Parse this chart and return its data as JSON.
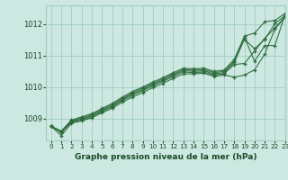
{
  "bg_color": "#cce8e0",
  "grid_color": "#9ecec4",
  "line_color": "#2d6b3c",
  "xlabel": "Graphe pression niveau de la mer (hPa)",
  "xlabel_color": "#1a4a28",
  "xlim": [
    -0.5,
    23
  ],
  "ylim": [
    1008.3,
    1012.6
  ],
  "yticks": [
    1009,
    1010,
    1011,
    1012
  ],
  "xticks": [
    0,
    1,
    2,
    3,
    4,
    5,
    6,
    7,
    8,
    9,
    10,
    11,
    12,
    13,
    14,
    15,
    16,
    17,
    18,
    19,
    20,
    21,
    22,
    23
  ],
  "series": [
    [
      1008.75,
      1008.45,
      1008.85,
      1008.92,
      1009.02,
      1009.18,
      1009.32,
      1009.52,
      1009.68,
      1009.82,
      1009.98,
      1010.12,
      1010.28,
      1010.42,
      1010.42,
      1010.44,
      1010.34,
      1010.38,
      1010.32,
      1010.38,
      1010.55,
      1011.05,
      1011.85,
      1012.22
    ],
    [
      1008.75,
      1008.55,
      1008.88,
      1008.95,
      1009.06,
      1009.22,
      1009.37,
      1009.57,
      1009.74,
      1009.88,
      1010.04,
      1010.18,
      1010.34,
      1010.48,
      1010.46,
      1010.48,
      1010.38,
      1010.42,
      1010.72,
      1010.75,
      1011.15,
      1011.55,
      1011.88,
      1012.25
    ],
    [
      1008.75,
      1008.57,
      1008.9,
      1008.98,
      1009.08,
      1009.24,
      1009.4,
      1009.6,
      1009.78,
      1009.92,
      1010.08,
      1010.22,
      1010.38,
      1010.52,
      1010.5,
      1010.52,
      1010.42,
      1010.46,
      1010.78,
      1011.52,
      1011.22,
      1011.52,
      1012.02,
      1012.28
    ],
    [
      1008.75,
      1008.58,
      1008.92,
      1009.02,
      1009.12,
      1009.28,
      1009.44,
      1009.64,
      1009.82,
      1009.96,
      1010.12,
      1010.26,
      1010.42,
      1010.56,
      1010.54,
      1010.56,
      1010.46,
      1010.5,
      1010.82,
      1011.58,
      1010.82,
      1011.32,
      1011.32,
      1012.32
    ],
    [
      1008.75,
      1008.6,
      1008.95,
      1009.05,
      1009.15,
      1009.32,
      1009.48,
      1009.68,
      1009.86,
      1010.0,
      1010.16,
      1010.3,
      1010.46,
      1010.6,
      1010.58,
      1010.6,
      1010.5,
      1010.54,
      1010.88,
      1011.62,
      1011.72,
      1012.08,
      1012.12,
      1012.35
    ]
  ]
}
